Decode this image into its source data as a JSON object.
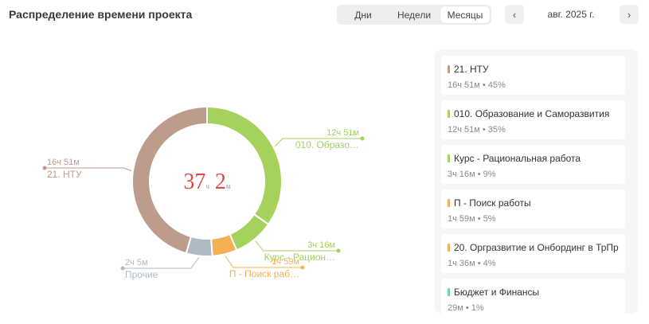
{
  "header": {
    "title": "Распределение времени проекта",
    "view_tabs": [
      "Дни",
      "Недели",
      "Месяцы"
    ],
    "active_tab": "Месяцы",
    "period": "авг. 2025 г.",
    "prev_icon": "chevron-left-icon",
    "next_icon": "chevron-right-icon"
  },
  "chart_data": {
    "type": "pie",
    "donut": true,
    "center": {
      "value_h": "37",
      "unit_h": "ч",
      "value_m": "2",
      "unit_m": "м"
    },
    "slices": [
      {
        "label": "010. Образо…",
        "value_text": "12ч 51м",
        "minutes": 771,
        "color": "#a5d15d"
      },
      {
        "label": "Курс - Рацион…",
        "value_text": "3ч 16м",
        "minutes": 196,
        "color": "#a5d15d"
      },
      {
        "label": "П - Поиск раб…",
        "value_text": "1ч 59м",
        "minutes": 119,
        "color": "#f5b055"
      },
      {
        "label": "Прочие",
        "value_text": "2ч 5м",
        "minutes": 125,
        "color": "#aebbc3"
      },
      {
        "label": "21. НТУ",
        "value_text": "16ч 51м",
        "minutes": 1011,
        "color": "#bd9c8c"
      }
    ]
  },
  "legend": [
    {
      "name": "21. НТУ",
      "sub": "16ч 51м • 45%",
      "color": "#bd9c8c"
    },
    {
      "name": "010. Образование и Саморазвития",
      "sub": "12ч 51м • 35%",
      "color": "#a5d15d"
    },
    {
      "name": "Курс - Рациональная работа",
      "sub": "3ч 16м • 9%",
      "color": "#a5d15d"
    },
    {
      "name": "П - Поиск работы",
      "sub": "1ч 59м • 5%",
      "color": "#f5b055"
    },
    {
      "name": "20. Оргразвитие и Онбординг в ТрПр",
      "sub": "1ч 36м • 4%",
      "color": "#f5b055"
    },
    {
      "name": "Бюджет и Финансы",
      "sub": "29м • 1%",
      "color": "#6fd8a6"
    }
  ]
}
